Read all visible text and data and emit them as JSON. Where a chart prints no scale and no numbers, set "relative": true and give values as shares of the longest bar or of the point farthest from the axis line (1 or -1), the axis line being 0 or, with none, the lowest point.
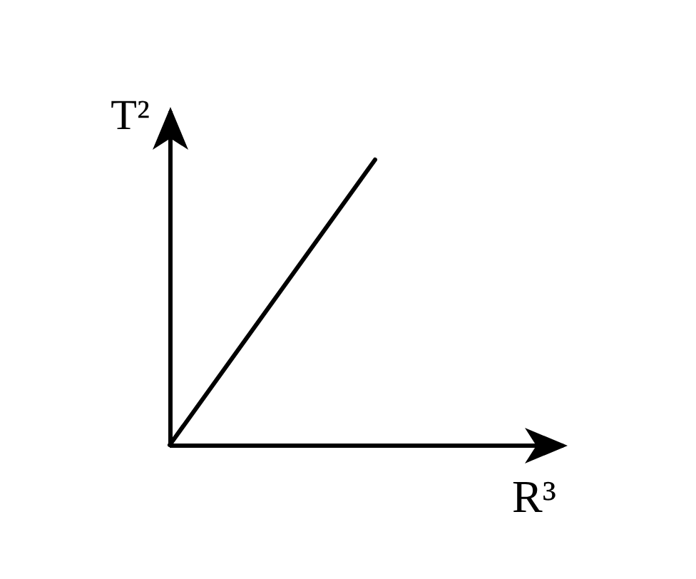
{
  "chart_data": {
    "type": "line",
    "xlabel": "R³",
    "ylabel": "T²",
    "categories": [
      null,
      null
    ],
    "values": [
      0,
      1
    ],
    "relative": true,
    "color": "#000000",
    "marker": "none",
    "line_style": "solid"
  }
}
